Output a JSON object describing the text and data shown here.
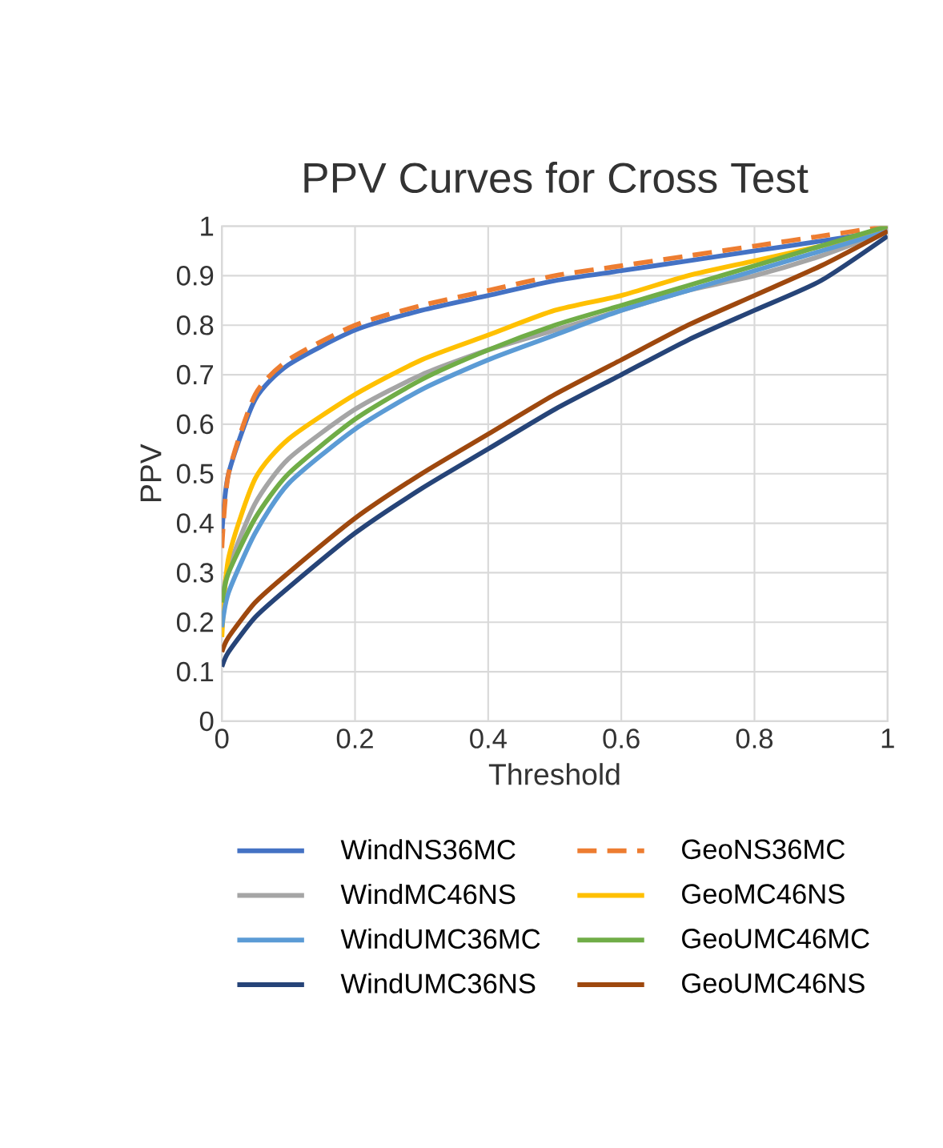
{
  "chart_data": {
    "type": "line",
    "title": "PPV Curves for Cross Test",
    "xlabel": "Threshold",
    "ylabel": "PPV",
    "x": [
      0,
      0.01,
      0.05,
      0.1,
      0.2,
      0.3,
      0.4,
      0.5,
      0.6,
      0.7,
      0.8,
      0.9,
      1
    ],
    "xlim": [
      0,
      1
    ],
    "ylim": [
      0,
      1
    ],
    "xticks": [
      0,
      0.2,
      0.4,
      0.6,
      0.8,
      1
    ],
    "yticks": [
      0,
      0.1,
      0.2,
      0.3,
      0.4,
      0.5,
      0.6,
      0.7,
      0.8,
      0.9,
      1
    ],
    "grid": true,
    "legend": "bottom",
    "marker": "none",
    "line_style": "solid",
    "series": [
      {
        "name": "WindNS36MC",
        "color": "#4472c4",
        "values": [
          0.38,
          0.5,
          0.65,
          0.72,
          0.79,
          0.83,
          0.86,
          0.89,
          0.91,
          0.93,
          0.95,
          0.97,
          0.99
        ]
      },
      {
        "name": "GeoNS36MC",
        "color": "#ed7d31",
        "line_style": "dashed",
        "values": [
          0.35,
          0.5,
          0.66,
          0.73,
          0.8,
          0.84,
          0.87,
          0.9,
          0.92,
          0.94,
          0.96,
          0.98,
          1.0
        ]
      },
      {
        "name": "WindMC46NS",
        "color": "#a5a5a5",
        "values": [
          0.24,
          0.31,
          0.44,
          0.53,
          0.63,
          0.7,
          0.75,
          0.79,
          0.83,
          0.87,
          0.9,
          0.94,
          0.99
        ]
      },
      {
        "name": "GeoMC46NS",
        "color": "#ffc000",
        "values": [
          0.17,
          0.33,
          0.49,
          0.57,
          0.66,
          0.73,
          0.78,
          0.83,
          0.86,
          0.9,
          0.93,
          0.96,
          0.99
        ]
      },
      {
        "name": "WindUMC36MC",
        "color": "#5b9bd5",
        "values": [
          0.19,
          0.26,
          0.38,
          0.48,
          0.59,
          0.67,
          0.73,
          0.78,
          0.83,
          0.87,
          0.91,
          0.95,
          0.99
        ]
      },
      {
        "name": "GeoUMC46MC",
        "color": "#70ad47",
        "values": [
          0.24,
          0.3,
          0.41,
          0.5,
          0.61,
          0.69,
          0.75,
          0.8,
          0.84,
          0.88,
          0.92,
          0.96,
          1.0
        ]
      },
      {
        "name": "WindUMC36NS",
        "color": "#264478",
        "values": [
          0.11,
          0.14,
          0.21,
          0.27,
          0.38,
          0.47,
          0.55,
          0.63,
          0.7,
          0.77,
          0.83,
          0.89,
          0.98
        ]
      },
      {
        "name": "GeoUMC46NS",
        "color": "#9e480e",
        "values": [
          0.14,
          0.17,
          0.24,
          0.3,
          0.41,
          0.5,
          0.58,
          0.66,
          0.73,
          0.8,
          0.86,
          0.92,
          0.99
        ]
      }
    ]
  }
}
